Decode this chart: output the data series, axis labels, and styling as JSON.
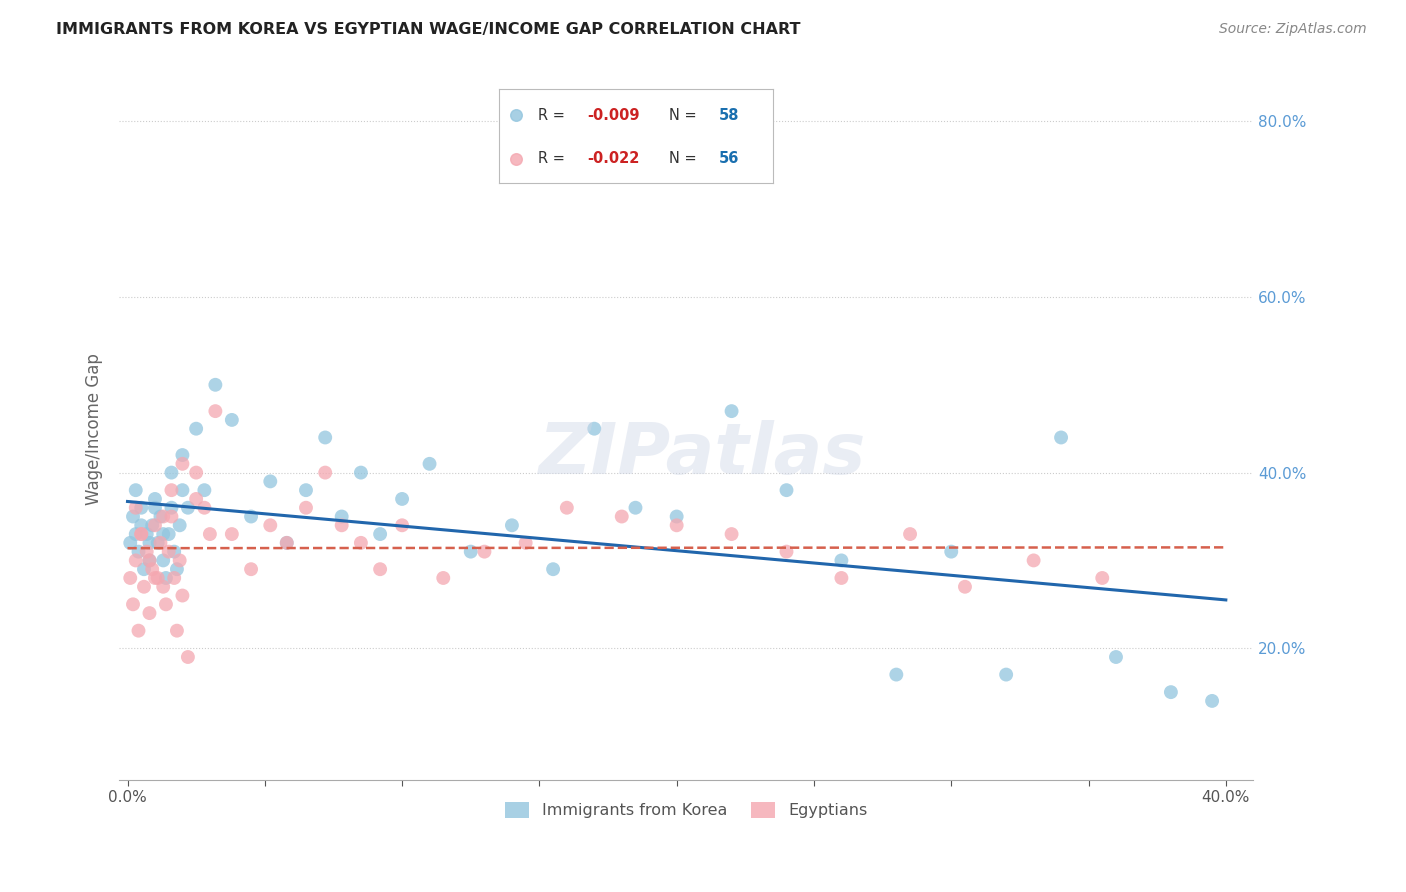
{
  "title": "IMMIGRANTS FROM KOREA VS EGYPTIAN WAGE/INCOME GAP CORRELATION CHART",
  "source": "Source: ZipAtlas.com",
  "ylabel": "Wage/Income Gap",
  "blue_color": "#92c5de",
  "pink_color": "#f4a7b0",
  "blue_line_color": "#2166ac",
  "pink_line_color": "#d6604d",
  "korea_R": -0.009,
  "korea_N": 58,
  "egypt_R": -0.022,
  "egypt_N": 56,
  "xlim": [
    0,
    40
  ],
  "ylim": [
    5,
    85
  ],
  "right_yticks": [
    20.0,
    40.0,
    60.0,
    80.0
  ],
  "korea_x": [
    0.1,
    0.2,
    0.3,
    0.4,
    0.5,
    0.6,
    0.7,
    0.8,
    0.9,
    1.0,
    1.1,
    1.2,
    1.3,
    1.4,
    1.5,
    1.6,
    1.7,
    1.8,
    1.9,
    2.0,
    2.2,
    2.5,
    2.8,
    3.2,
    3.8,
    4.5,
    5.2,
    5.8,
    6.5,
    7.2,
    7.8,
    8.5,
    9.2,
    10.0,
    11.0,
    12.5,
    14.0,
    15.5,
    17.0,
    18.5,
    20.0,
    22.0,
    24.0,
    26.0,
    28.0,
    30.0,
    32.0,
    34.0,
    36.0,
    38.0,
    39.5,
    0.3,
    0.5,
    0.8,
    1.0,
    1.3,
    1.6,
    2.0
  ],
  "korea_y": [
    32,
    35,
    33,
    31,
    36,
    29,
    33,
    30,
    34,
    37,
    32,
    35,
    30,
    28,
    33,
    36,
    31,
    29,
    34,
    38,
    36,
    45,
    38,
    50,
    46,
    35,
    39,
    32,
    38,
    44,
    35,
    40,
    33,
    37,
    41,
    31,
    34,
    29,
    45,
    36,
    35,
    47,
    38,
    30,
    17,
    31,
    17,
    44,
    19,
    15,
    14,
    38,
    34,
    32,
    36,
    33,
    40,
    42
  ],
  "egypt_x": [
    0.1,
    0.2,
    0.3,
    0.4,
    0.5,
    0.6,
    0.7,
    0.8,
    0.9,
    1.0,
    1.1,
    1.2,
    1.3,
    1.4,
    1.5,
    1.6,
    1.7,
    1.8,
    1.9,
    2.0,
    2.2,
    2.5,
    2.8,
    3.2,
    3.8,
    4.5,
    5.2,
    5.8,
    6.5,
    7.2,
    7.8,
    8.5,
    9.2,
    10.0,
    11.5,
    13.0,
    14.5,
    16.0,
    18.0,
    20.0,
    22.0,
    24.0,
    26.0,
    28.5,
    30.5,
    33.0,
    35.5,
    0.3,
    0.5,
    0.8,
    1.0,
    1.3,
    1.6,
    2.0,
    2.5,
    3.0
  ],
  "egypt_y": [
    28,
    25,
    30,
    22,
    33,
    27,
    31,
    24,
    29,
    34,
    28,
    32,
    27,
    25,
    31,
    35,
    28,
    22,
    30,
    26,
    19,
    40,
    36,
    47,
    33,
    29,
    34,
    32,
    36,
    40,
    34,
    32,
    29,
    34,
    28,
    31,
    32,
    36,
    35,
    34,
    33,
    31,
    28,
    33,
    27,
    30,
    28,
    36,
    33,
    30,
    28,
    35,
    38,
    41,
    37,
    33
  ]
}
